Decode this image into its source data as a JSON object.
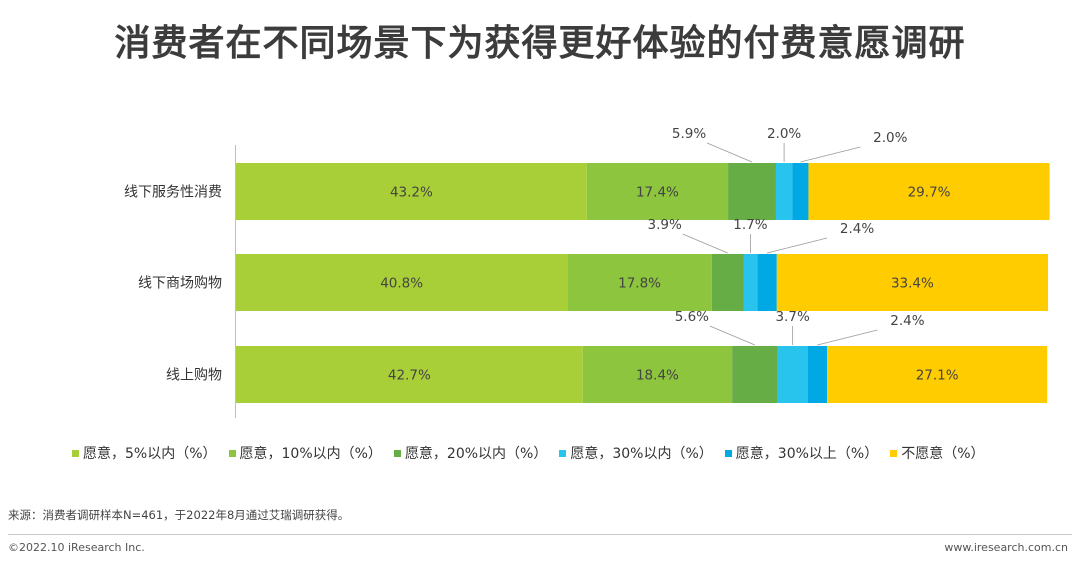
{
  "page": {
    "title": "消费者在不同场景下为获得更好体验的付费意愿调研",
    "source": "来源：消费者调研样本N=461，于2022年8月通过艾瑞调研获得。",
    "copyright": "©2022.10 iResearch Inc.",
    "website": "www.iresearch.com.cn"
  },
  "chart_data": {
    "type": "bar",
    "orientation": "horizontal",
    "stacked": true,
    "unit": "%",
    "title": "消费者在不同场景下为获得更好体验的付费意愿调研",
    "categories": [
      "线下服务性消费",
      "线下商场购物",
      "线上购物"
    ],
    "series": [
      {
        "name": "愿意，5%以内（%）",
        "color": "#a9cf38",
        "values": [
          43.2,
          40.8,
          42.7
        ]
      },
      {
        "name": "愿意，10%以内（%）",
        "color": "#8dc53e",
        "values": [
          17.4,
          17.8,
          18.4
        ]
      },
      {
        "name": "愿意，20%以内（%）",
        "color": "#67ad46",
        "values": [
          5.9,
          3.9,
          5.6
        ]
      },
      {
        "name": "愿意，30%以内（%）",
        "color": "#29c4ee",
        "values": [
          2.0,
          1.7,
          3.7
        ]
      },
      {
        "name": "愿意，30%以上（%）",
        "color": "#00a9e4",
        "values": [
          2.0,
          2.4,
          2.4
        ]
      },
      {
        "name": "不愿意（%）",
        "color": "#ffcc00",
        "values": [
          29.7,
          33.4,
          27.1
        ]
      }
    ],
    "labels": [
      [
        "43.2%",
        "17.4%",
        "5.9%",
        "2.0%",
        "2.0%",
        "29.7%"
      ],
      [
        "40.8%",
        "17.8%",
        "3.9%",
        "1.7%",
        "2.4%",
        "33.4%"
      ],
      [
        "42.7%",
        "18.4%",
        "5.6%",
        "3.7%",
        "2.4%",
        "27.1%"
      ]
    ],
    "legend_position": "bottom",
    "xlim": [
      0,
      100
    ]
  }
}
